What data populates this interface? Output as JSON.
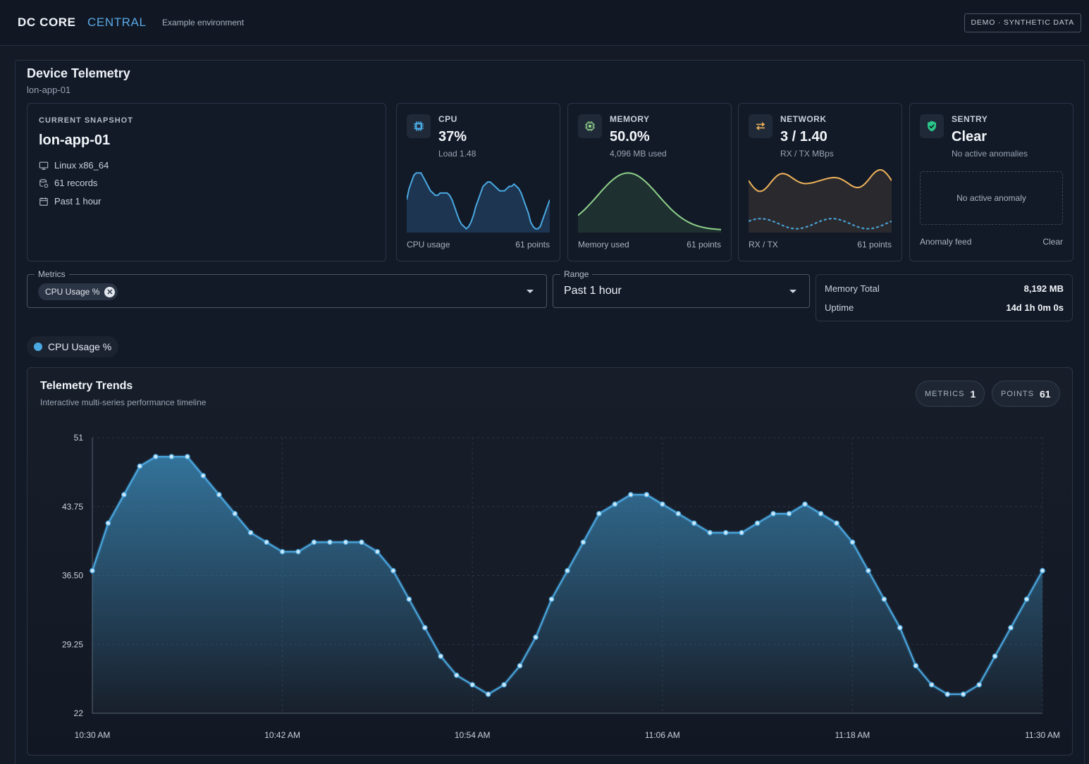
{
  "header": {
    "brand": "DC CORE",
    "brand_sub": "CENTRAL",
    "environment": "Example environment",
    "badge": "DEMO · SYNTHETIC DATA"
  },
  "panel": {
    "title": "Device Telemetry",
    "subtitle": "lon-app-01"
  },
  "snapshot": {
    "label": "CURRENT SNAPSHOT",
    "host": "lon-app-01",
    "os": "Linux x86_64",
    "records": "61 records",
    "period": "Past 1 hour"
  },
  "cards": {
    "cpu": {
      "label": "CPU",
      "value": "37%",
      "sub": "Load 1.48",
      "foot_left": "CPU usage",
      "foot_right": "61 points",
      "color": "#4aa9e2"
    },
    "memory": {
      "label": "MEMORY",
      "value": "50.0%",
      "sub": "4,096 MB used",
      "foot_left": "Memory used",
      "foot_right": "61 points",
      "color": "#8fd18a"
    },
    "network": {
      "label": "NETWORK",
      "value": "3 / 1.40",
      "sub": "RX / TX MBps",
      "foot_left": "RX / TX",
      "foot_right": "61 points",
      "color_rx": "#f0b35a",
      "color_tx": "#4aa9e2"
    },
    "sentry": {
      "label": "SENTRY",
      "value": "Clear",
      "sub": "No active anomalies",
      "box_text": "No active anomaly",
      "foot_left": "Anomaly feed",
      "foot_right": "Clear",
      "color": "#2bc48a"
    }
  },
  "controls": {
    "metrics_legend": "Metrics",
    "metrics_chip": "CPU Usage %",
    "range_legend": "Range",
    "range_value": "Past 1 hour"
  },
  "info": {
    "memory_total_label": "Memory Total",
    "memory_total_value": "8,192 MB",
    "uptime_label": "Uptime",
    "uptime_value": "14d 1h 0m 0s"
  },
  "legend": {
    "series_name": "CPU Usage %",
    "color": "#4aa9e2"
  },
  "trend": {
    "title": "Telemetry Trends",
    "subtitle": "Interactive multi-series performance timeline",
    "metrics_label": "METRICS",
    "metrics_count": "1",
    "points_label": "POINTS",
    "points_count": "61"
  },
  "chart_data": {
    "type": "area",
    "title": "Telemetry Trends",
    "xlabel": "",
    "ylabel": "",
    "x_ticks": [
      "10:30 AM",
      "10:42 AM",
      "10:54 AM",
      "11:06 AM",
      "11:18 AM",
      "11:30 AM"
    ],
    "y_ticks": [
      "22",
      "29.25",
      "36.50",
      "43.75",
      "51"
    ],
    "ylim": [
      22,
      51
    ],
    "grid": true,
    "series": [
      {
        "name": "CPU Usage %",
        "color": "#4aa9e2",
        "values": [
          37,
          42,
          45,
          48,
          49,
          49,
          49,
          47,
          45,
          43,
          41,
          40,
          39,
          39,
          40,
          40,
          40,
          40,
          39,
          37,
          34,
          31,
          28,
          26,
          25,
          24,
          25,
          27,
          30,
          34,
          37,
          40,
          43,
          44,
          45,
          45,
          44,
          43,
          42,
          41,
          41,
          41,
          42,
          43,
          43,
          44,
          43,
          42,
          40,
          37,
          34,
          31,
          27,
          25,
          24,
          24,
          25,
          28,
          31,
          34,
          37
        ]
      }
    ]
  }
}
